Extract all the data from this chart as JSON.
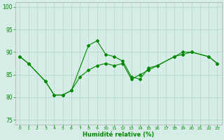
{
  "xlabel": "Humidité relative (%)",
  "background_color": "#d5ede6",
  "grid_color": "#b0d8cc",
  "line_color": "#008800",
  "xlim": [
    -0.5,
    23.5
  ],
  "ylim": [
    74,
    101
  ],
  "yticks": [
    75,
    80,
    85,
    90,
    95,
    100
  ],
  "xticks": [
    0,
    1,
    2,
    3,
    4,
    5,
    6,
    7,
    8,
    9,
    10,
    11,
    12,
    13,
    14,
    15,
    16,
    17,
    18,
    19,
    20,
    21,
    22,
    23
  ],
  "s1_x": [
    0,
    1,
    3,
    4,
    5,
    6,
    8,
    9,
    10,
    11,
    12,
    13,
    14,
    15,
    16,
    18,
    19,
    20,
    22,
    23
  ],
  "s1_y": [
    89.0,
    87.5,
    83.5,
    80.5,
    80.5,
    81.5,
    91.5,
    92.5,
    89.5,
    89.0,
    88.0,
    84.5,
    84.0,
    86.5,
    87.0,
    89.0,
    90.0,
    90.0,
    89.0,
    87.5
  ],
  "s2_x": [
    0,
    1,
    3,
    4,
    5,
    6,
    7,
    8,
    9,
    10,
    11,
    12,
    13,
    14,
    15,
    16,
    18,
    19,
    20,
    22,
    23
  ],
  "s2_y": [
    89.0,
    87.5,
    83.5,
    80.5,
    80.5,
    81.5,
    84.5,
    86.0,
    87.0,
    87.5,
    87.0,
    87.5,
    84.0,
    85.0,
    86.0,
    87.0,
    89.0,
    89.5,
    90.0,
    89.0,
    87.5
  ]
}
